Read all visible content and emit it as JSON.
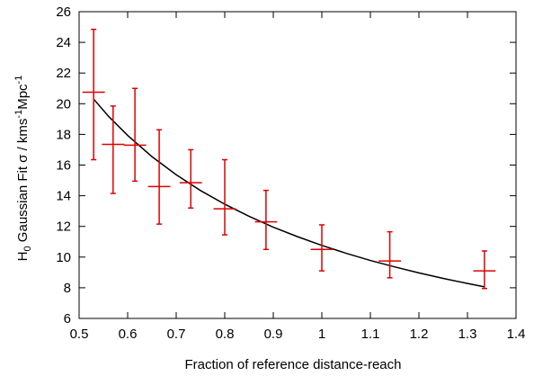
{
  "chart_data": {
    "type": "scatter",
    "xlabel": "Fraction of reference distance-reach",
    "ylabel": {
      "prefix": "H",
      "prefix_sub": "0",
      "main": " Gaussian Fit σ / kms",
      "sup1": "-1",
      "mid": "Mpc",
      "sup2": "-1"
    },
    "xlim": [
      0.5,
      1.4
    ],
    "ylim": [
      6,
      26
    ],
    "xticks": [
      "0.5",
      "0.6",
      "0.7",
      "0.8",
      "0.9",
      "1",
      "1.1",
      "1.2",
      "1.3",
      "1.4"
    ],
    "yticks": [
      "6",
      "8",
      "10",
      "12",
      "14",
      "16",
      "18",
      "20",
      "22",
      "24",
      "26"
    ],
    "grid": false,
    "legend": "none",
    "points": {
      "color": "#e00000",
      "x": [
        0.53,
        0.57,
        0.615,
        0.665,
        0.73,
        0.8,
        0.885,
        1.0,
        1.14,
        1.335
      ],
      "y": [
        20.75,
        17.35,
        17.3,
        14.6,
        14.85,
        13.15,
        12.3,
        10.5,
        9.75,
        9.1
      ],
      "x_err": [
        0.023,
        0.023,
        0.023,
        0.023,
        0.023,
        0.023,
        0.023,
        0.023,
        0.023,
        0.023
      ],
      "y_err_high": [
        24.85,
        19.85,
        21.0,
        18.3,
        17.0,
        16.35,
        14.35,
        12.1,
        11.65,
        10.4
      ],
      "y_err_low": [
        16.35,
        14.15,
        14.95,
        12.15,
        13.2,
        11.45,
        10.5,
        9.1,
        8.65,
        7.95
      ]
    },
    "fit_curve": {
      "color": "#000000",
      "x": [
        0.53,
        0.56,
        0.6,
        0.65,
        0.7,
        0.75,
        0.8,
        0.85,
        0.9,
        0.95,
        1.0,
        1.05,
        1.1,
        1.15,
        1.2,
        1.25,
        1.3,
        1.335
      ],
      "y": [
        20.3,
        19.2,
        17.93,
        16.55,
        15.37,
        14.34,
        13.45,
        12.66,
        11.95,
        11.33,
        10.76,
        10.25,
        9.78,
        9.36,
        8.97,
        8.61,
        8.28,
        8.06
      ]
    }
  }
}
